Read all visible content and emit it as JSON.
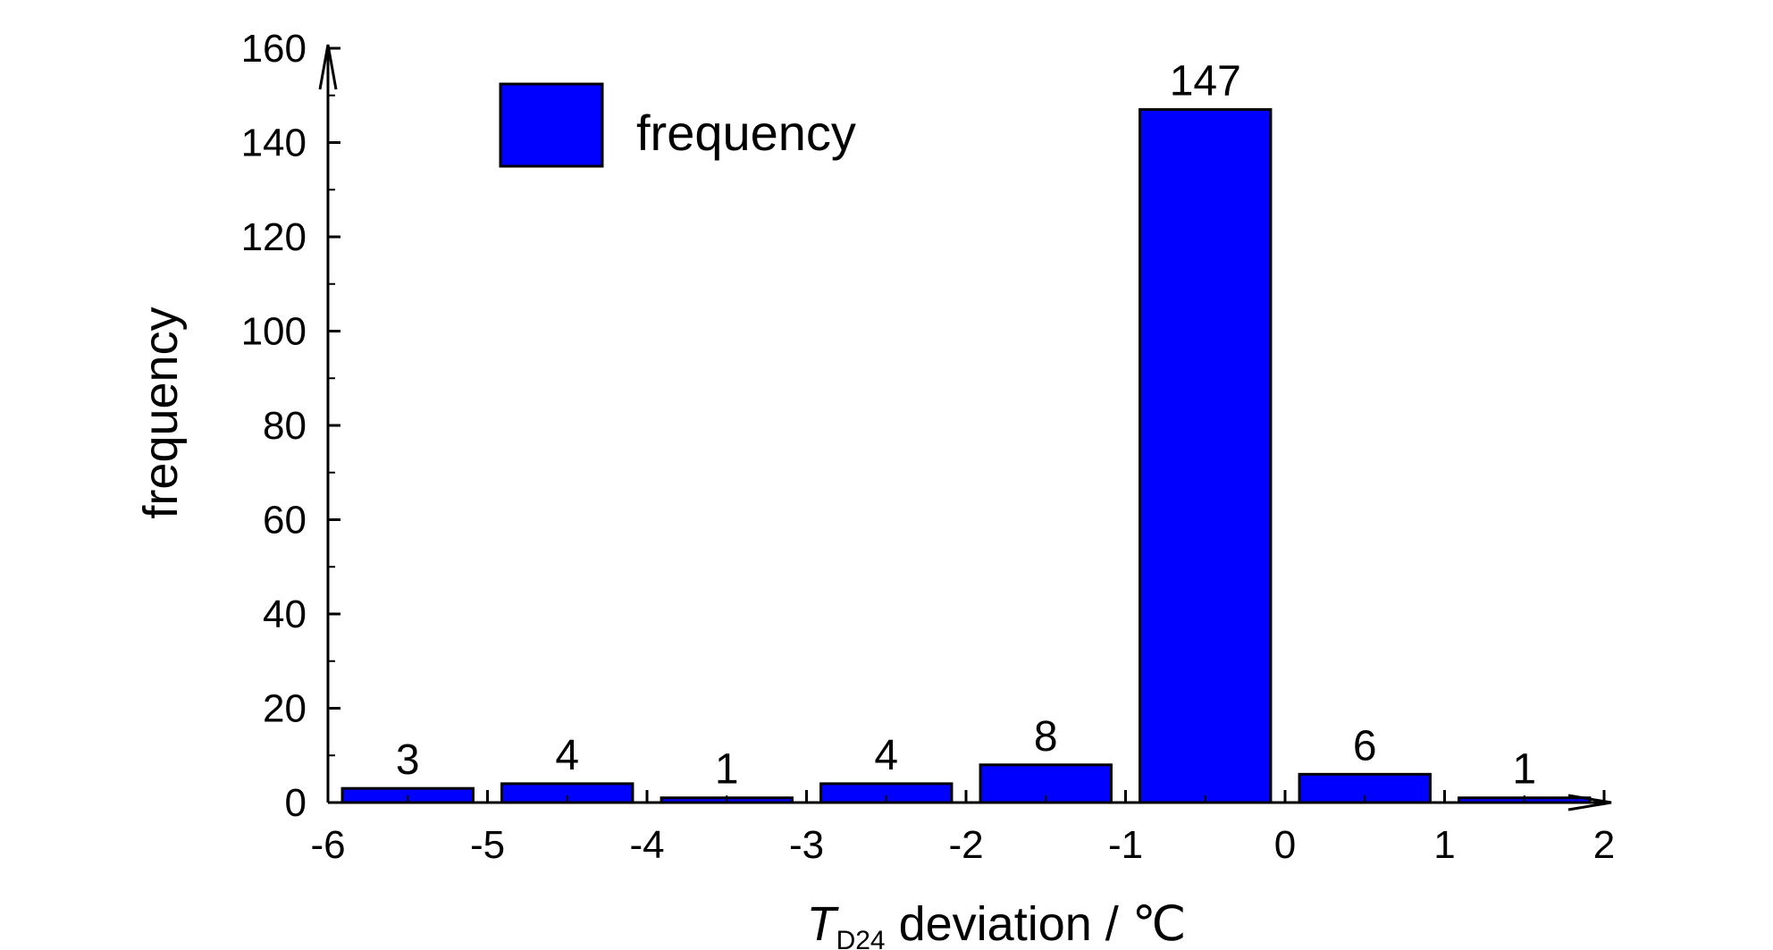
{
  "chart_data": {
    "type": "bar",
    "bin_edges": [
      -6,
      -5,
      -4,
      -3,
      -2,
      -1,
      0,
      1,
      2
    ],
    "values": [
      3,
      4,
      1,
      4,
      8,
      147,
      6,
      1
    ],
    "data_labels": [
      "3",
      "4",
      "1",
      "4",
      "8",
      "147",
      "6",
      "1"
    ],
    "xlabel": {
      "symbol": "T",
      "subscript": "D24",
      "text": " deviation / ℃"
    },
    "ylabel": "frequency",
    "xlim": [
      -6,
      2
    ],
    "ylim": [
      0,
      160
    ],
    "x_ticks": [
      "-6",
      "-5",
      "-4",
      "-3",
      "-2",
      "-1",
      "0",
      "1",
      "2"
    ],
    "y_ticks": [
      "0",
      "20",
      "40",
      "60",
      "80",
      "100",
      "120",
      "140",
      "160"
    ],
    "legend": {
      "label": "frequency",
      "position": "top-left"
    },
    "grid": false,
    "colors": {
      "bar": "#0000ff",
      "bar_edge": "#000000",
      "axis": "#000000"
    }
  }
}
